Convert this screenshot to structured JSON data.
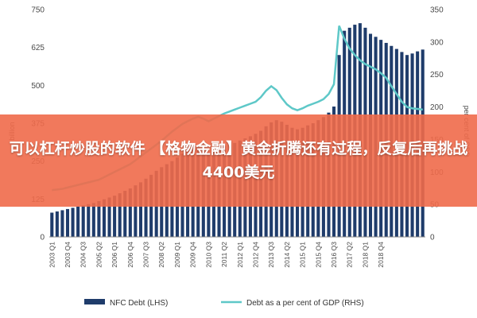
{
  "banner": {
    "text": "可以杠杆炒股的软件 【格物金融】黄金折腾还有过程，反复后再挑战4400美元",
    "color": "#f06a4a"
  },
  "chart_data": {
    "type": "bar+line",
    "title": "",
    "ylabel_left": "billion",
    "ylabel_right": "per cent of GDP",
    "ylim_left": [
      0,
      750
    ],
    "ylim_right": [
      0,
      350
    ],
    "yticks_left": [
      "0",
      "125",
      "250",
      "375",
      "500",
      "625",
      "750"
    ],
    "yticks_right": [
      "0",
      "50",
      "100",
      "150",
      "200",
      "250",
      "300",
      "350"
    ],
    "grid": false,
    "legend_position": "bottom",
    "colors": {
      "bars": "#1f3c6b",
      "line": "#5ec8c8"
    },
    "x_tick_labels": [
      "2003 Q1",
      "2003 Q4",
      "2004 Q3",
      "2005 Q2",
      "2006 Q1",
      "2006 Q4",
      "2007 Q3",
      "2008 Q2",
      "2009 Q1",
      "2009 Q4",
      "2010 Q3",
      "2011 Q2",
      "2012 Q1",
      "2012 Q4",
      "2013 Q3",
      "2014 Q2",
      "2015 Q1",
      "2015 Q4",
      "2016 Q3",
      "2017 Q2",
      "2018 Q1",
      "2018 Q4"
    ],
    "series": [
      {
        "name": "NFC Debt (LHS)",
        "type": "bar",
        "axis": "left",
        "values": [
          80,
          84,
          88,
          92,
          96,
          100,
          104,
          108,
          112,
          118,
          124,
          130,
          136,
          144,
          152,
          160,
          170,
          180,
          192,
          205,
          218,
          230,
          240,
          250,
          262,
          275,
          288,
          300,
          295,
          285,
          275,
          280,
          290,
          300,
          305,
          310,
          318,
          325,
          332,
          340,
          350,
          365,
          378,
          385,
          380,
          370,
          360,
          355,
          360,
          368,
          375,
          385,
          395,
          410,
          430,
          600,
          680,
          690,
          700,
          705,
          690,
          670,
          660,
          650,
          640,
          630,
          620,
          610,
          600,
          605,
          612,
          618
        ]
      },
      {
        "name": "Debt as a per cent of GDP (RHS)",
        "type": "line",
        "axis": "right",
        "values": [
          72,
          73,
          74,
          76,
          78,
          80,
          82,
          84,
          86,
          88,
          92,
          96,
          100,
          104,
          108,
          112,
          118,
          124,
          130,
          136,
          142,
          148,
          155,
          162,
          168,
          174,
          178,
          182,
          185,
          182,
          178,
          182,
          186,
          190,
          193,
          196,
          199,
          202,
          205,
          208,
          215,
          225,
          232,
          226,
          214,
          204,
          198,
          195,
          198,
          202,
          205,
          208,
          212,
          220,
          235,
          325,
          305,
          290,
          280,
          272,
          266,
          262,
          258,
          252,
          245,
          232,
          220,
          208,
          200,
          198,
          197,
          196
        ]
      }
    ]
  }
}
